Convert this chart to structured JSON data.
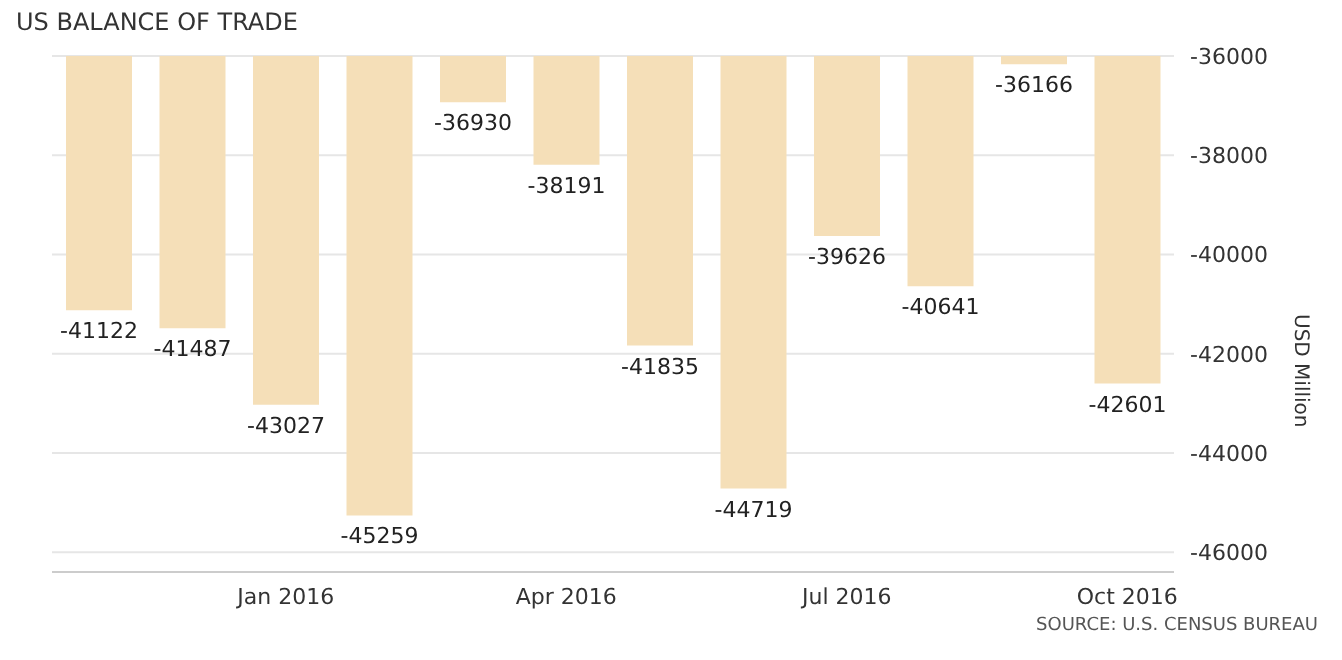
{
  "chart_data": {
    "type": "bar",
    "title": "US BALANCE OF TRADE",
    "ylabel": "USD Million",
    "categories": [
      null,
      null,
      "Jan 2016",
      null,
      null,
      "Apr 2016",
      null,
      null,
      "Jul 2016",
      null,
      null,
      "Oct 2016"
    ],
    "values": [
      -41122,
      -41487,
      -43027,
      -45259,
      -36930,
      -38191,
      -41835,
      -44719,
      -39626,
      -40641,
      -36166,
      -42601
    ],
    "color": "#f5dfb8",
    "ylim": [
      -46400,
      -36000
    ],
    "yticks": [
      -46000,
      -44000,
      -42000,
      -40000,
      -38000,
      -36000
    ],
    "grid": "y",
    "data_labels": true,
    "annotations": [
      "SOURCE: U.S. CENSUS BUREAU"
    ]
  }
}
